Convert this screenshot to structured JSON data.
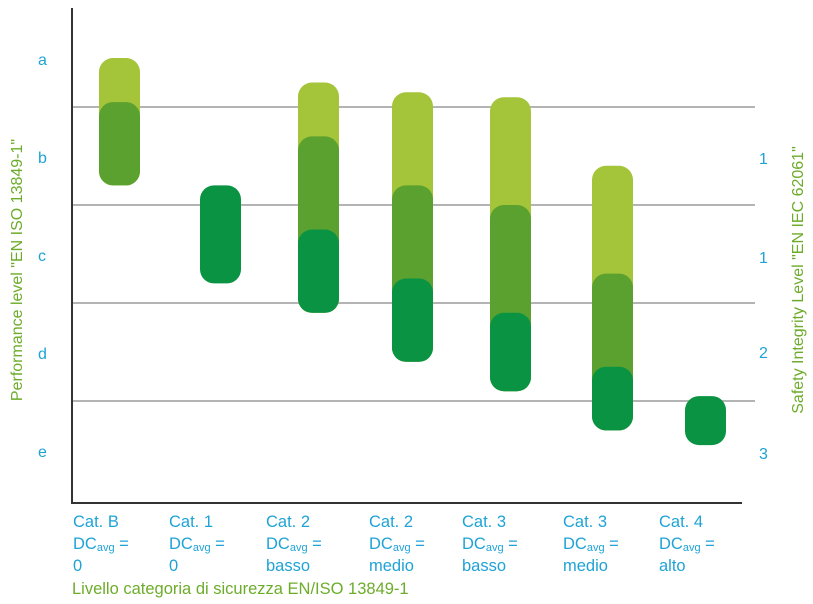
{
  "chart_data": {
    "type": "range-bar",
    "left_axis_label": "Performance level \"EN ISO 13849-1\"",
    "right_axis_label": "Safety Integrity Level \"EN IEC 62061\"",
    "xlabel": "Livello categoria di sicurezza EN/ISO 13849-1",
    "pl_levels": [
      "a",
      "b",
      "c",
      "d",
      "e"
    ],
    "sil_levels": [
      "1",
      "1",
      "2",
      "3"
    ],
    "categories": [
      {
        "cat": "Cat. B",
        "dc_prefix": "DC",
        "dc_sub": "avg",
        "dc_suffix": " =",
        "dc_value": "0"
      },
      {
        "cat": "Cat. 1",
        "dc_prefix": "DC",
        "dc_sub": "avg",
        "dc_suffix": " =",
        "dc_value": "0"
      },
      {
        "cat": "Cat. 2",
        "dc_prefix": "DC",
        "dc_sub": "avg",
        "dc_suffix": " =",
        "dc_value": "basso"
      },
      {
        "cat": "Cat. 2",
        "dc_prefix": "DC",
        "dc_sub": "avg",
        "dc_suffix": " =",
        "dc_value": "medio"
      },
      {
        "cat": "Cat. 3",
        "dc_prefix": "DC",
        "dc_sub": "avg",
        "dc_suffix": " =",
        "dc_value": "basso"
      },
      {
        "cat": "Cat. 3",
        "dc_prefix": "DC",
        "dc_sub": "avg",
        "dc_suffix": " =",
        "dc_value": "medio"
      },
      {
        "cat": "Cat. 4",
        "dc_prefix": "DC",
        "dc_sub": "avg",
        "dc_suffix": " =",
        "dc_value": "alto"
      }
    ],
    "bars": [
      [
        {
          "start": 0.0,
          "end": 1.3,
          "shade": "light"
        },
        {
          "start": 0.45,
          "end": 1.3,
          "shade": "mid"
        }
      ],
      [
        {
          "start": 1.3,
          "end": 2.3,
          "shade": "dark"
        }
      ],
      [
        {
          "start": 0.25,
          "end": 2.6,
          "shade": "light"
        },
        {
          "start": 0.8,
          "end": 2.6,
          "shade": "mid"
        },
        {
          "start": 1.75,
          "end": 2.6,
          "shade": "dark"
        }
      ],
      [
        {
          "start": 0.35,
          "end": 3.1,
          "shade": "light"
        },
        {
          "start": 1.3,
          "end": 3.1,
          "shade": "mid"
        },
        {
          "start": 2.25,
          "end": 3.1,
          "shade": "dark"
        }
      ],
      [
        {
          "start": 0.4,
          "end": 3.4,
          "shade": "light"
        },
        {
          "start": 1.5,
          "end": 3.4,
          "shade": "mid"
        },
        {
          "start": 2.6,
          "end": 3.4,
          "shade": "dark"
        }
      ],
      [
        {
          "start": 1.1,
          "end": 3.8,
          "shade": "light"
        },
        {
          "start": 2.2,
          "end": 3.8,
          "shade": "mid"
        },
        {
          "start": 3.15,
          "end": 3.8,
          "shade": "dark"
        }
      ],
      [
        {
          "start": 3.45,
          "end": 3.95,
          "shade": "dark"
        }
      ]
    ],
    "grid": true,
    "colors": {
      "light": "#a4c43a",
      "mid": "#5aa12f",
      "dark": "#0a9342",
      "gridline": "#b4b4b4",
      "tick_text": "#1fa3d6",
      "axis_title": "#6dac2a",
      "axis": "#333333"
    }
  }
}
